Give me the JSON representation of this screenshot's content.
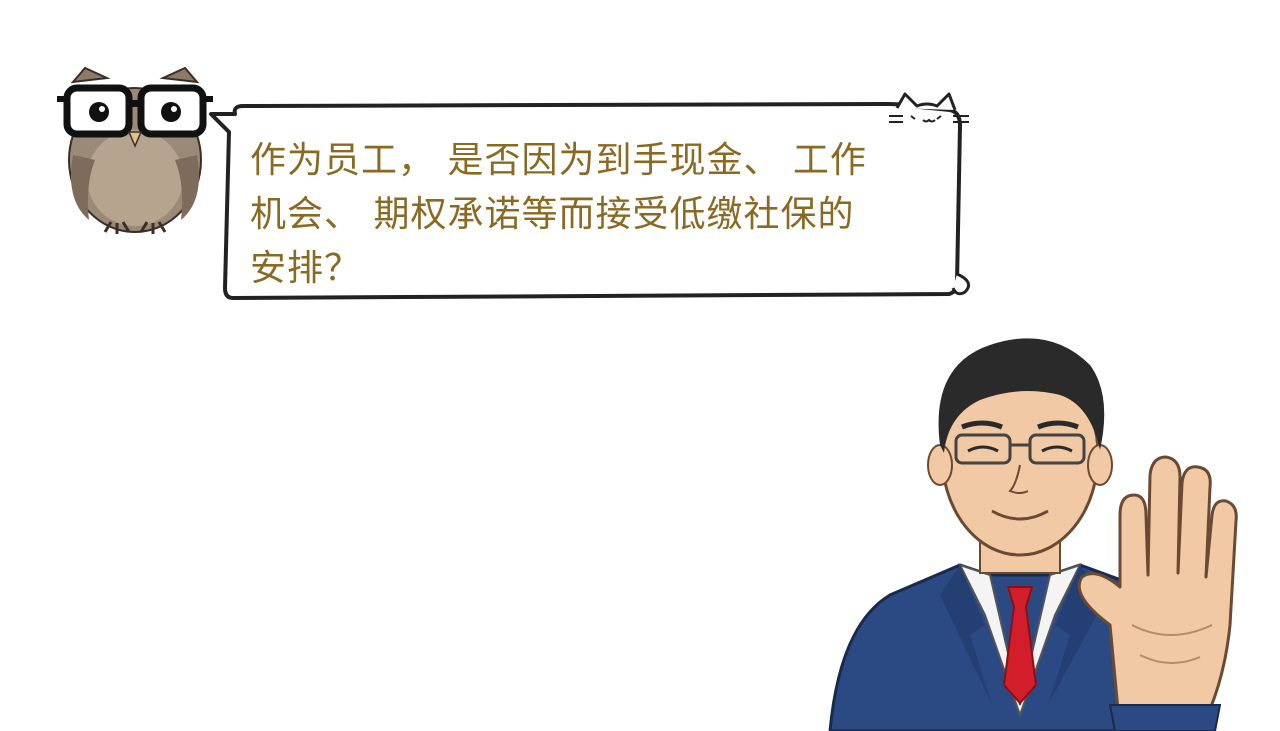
{
  "speech_bubble": {
    "lines": [
      "作为员工， 是否因为到手现金、 工作",
      "机会、 期权承诺等而接受低缴社保的",
      "安排？"
    ]
  },
  "icons": [
    "owl-with-glasses-icon",
    "cat-ears-icon",
    "businessman-stop-gesture-icon"
  ],
  "colors": {
    "text": "#8a6a22",
    "outline": "#222222",
    "owl_body": "#9b8a78",
    "suit": "#2b4a84",
    "tie": "#d11e2a",
    "skin": "#f1c9a4"
  }
}
